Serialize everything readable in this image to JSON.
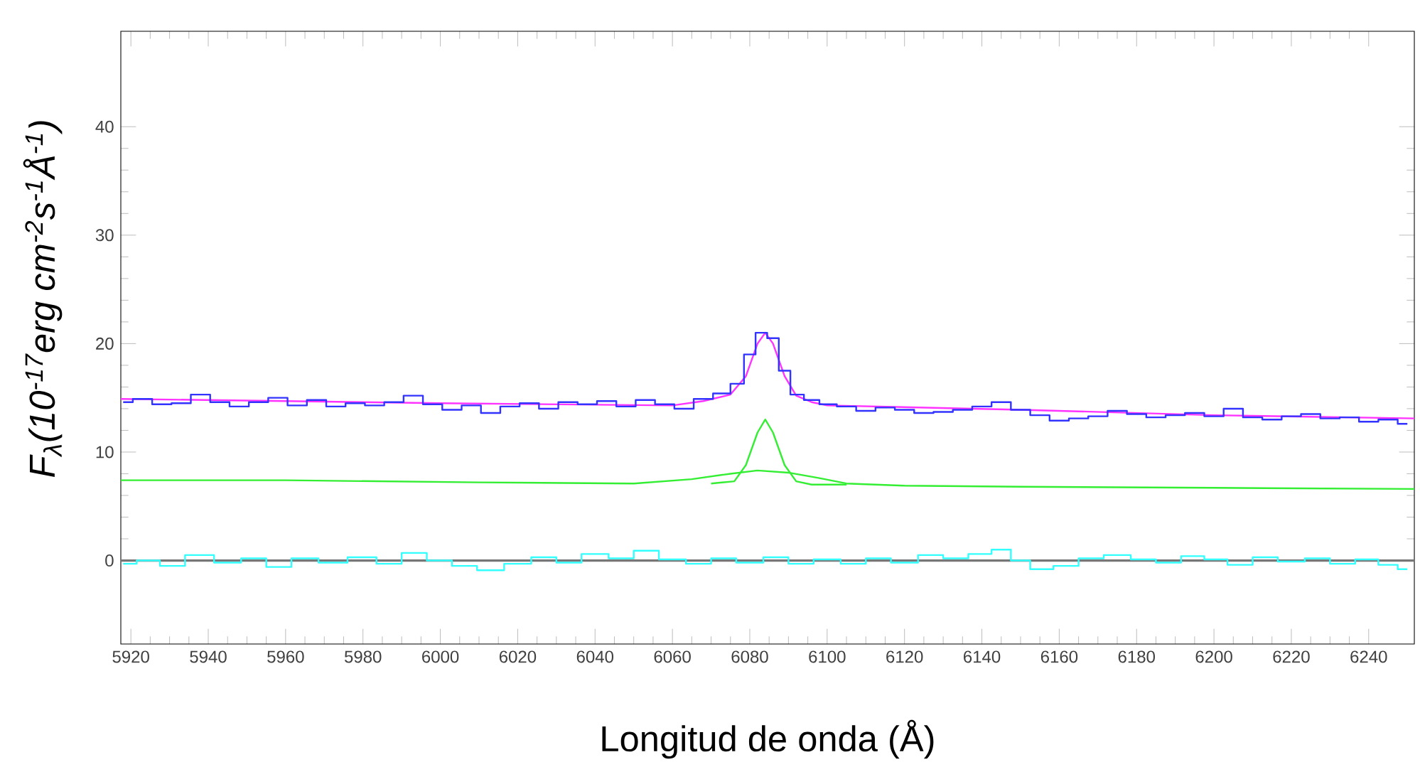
{
  "chart_data": {
    "type": "line",
    "xlabel": "Longitud de onda (Å)",
    "ylabel": "*F$_{λ}$(10$^{-17}$erg cm$^{-2}$s$^{-1}$Å$^{-1}$)*",
    "xlim": [
      5917.4,
      6251.8
    ],
    "ylim": [
      -7.7,
      48.8
    ],
    "xticks": [
      5920,
      5940,
      5960,
      5980,
      6000,
      6020,
      6040,
      6060,
      6080,
      6100,
      6120,
      6140,
      6160,
      6180,
      6200,
      6220,
      6240
    ],
    "yticks": [
      0,
      10,
      20,
      30,
      40
    ],
    "grid": false,
    "ref_lines": [
      {
        "axis": "y",
        "value": 0,
        "color": "#777777"
      }
    ],
    "series": [
      {
        "color": "#33ee33",
        "x": [
          5917.4,
          5960,
          6010,
          6050,
          6065,
          6075,
          6082,
          6090,
          6098,
          6105,
          6120,
          6150,
          6200,
          6251.8
        ],
        "values": [
          7.4,
          7.4,
          7.2,
          7.1,
          7.5,
          8.0,
          8.3,
          8.1,
          7.6,
          7.1,
          6.9,
          6.8,
          6.7,
          6.6
        ]
      },
      {
        "color": "#33ee33",
        "x": [
          6070,
          6076,
          6079,
          6082,
          6084,
          6086,
          6089,
          6092,
          6096,
          6105
        ],
        "values": [
          7.1,
          7.3,
          8.8,
          11.8,
          13.0,
          11.8,
          8.8,
          7.3,
          7.0,
          7.0
        ]
      },
      {
        "type": "step",
        "color": "#33ffff",
        "x": [
          5918,
          5925,
          5930,
          5938,
          5945,
          5952,
          5958,
          5965,
          5972,
          5980,
          5987,
          5993,
          6000,
          6006,
          6013,
          6020,
          6027,
          6033,
          6040,
          6047,
          6053,
          6060,
          6067,
          6073,
          6080,
          6087,
          6093,
          6100,
          6107,
          6113,
          6120,
          6127,
          6133,
          6140,
          6145,
          6150,
          6155,
          6162,
          6168,
          6175,
          6182,
          6188,
          6195,
          6200,
          6207,
          6213,
          6220,
          6227,
          6233,
          6240,
          6245,
          6250
        ],
        "values": [
          -0.3,
          0,
          -0.5,
          0.5,
          -0.2,
          0.2,
          -0.6,
          0.2,
          -0.2,
          0.3,
          -0.3,
          0.7,
          0,
          -0.5,
          -0.9,
          -0.3,
          0.3,
          -0.2,
          0.6,
          0.2,
          0.9,
          0.1,
          -0.3,
          0.2,
          -0.2,
          0.3,
          -0.3,
          0.1,
          -0.3,
          0.2,
          -0.2,
          0.5,
          0.2,
          0.6,
          1.0,
          0,
          -0.8,
          -0.5,
          0.2,
          0.5,
          0.1,
          -0.2,
          0.4,
          0.1,
          -0.4,
          0.3,
          -0.1,
          0.2,
          -0.3,
          0.1,
          -0.4,
          -0.8
        ]
      },
      {
        "type": "step",
        "color": "#3333ff",
        "x": [
          5918,
          5923,
          5928,
          5933,
          5938,
          5943,
          5948,
          5953,
          5958,
          5963,
          5968,
          5973,
          5978,
          5983,
          5988,
          5993,
          5998,
          6003,
          6008,
          6013,
          6018,
          6023,
          6028,
          6033,
          6038,
          6043,
          6048,
          6053,
          6058,
          6063,
          6068,
          6073,
          6077,
          6080,
          6083,
          6086,
          6089,
          6092,
          6096,
          6100,
          6105,
          6110,
          6115,
          6120,
          6125,
          6130,
          6135,
          6140,
          6145,
          6150,
          6155,
          6160,
          6165,
          6170,
          6175,
          6180,
          6185,
          6190,
          6195,
          6200,
          6205,
          6210,
          6215,
          6220,
          6225,
          6230,
          6235,
          6240,
          6245,
          6250
        ],
        "values": [
          14.6,
          14.9,
          14.4,
          14.5,
          15.3,
          14.6,
          14.2,
          14.6,
          15.0,
          14.3,
          14.8,
          14.2,
          14.5,
          14.3,
          14.6,
          15.2,
          14.4,
          13.9,
          14.3,
          13.6,
          14.2,
          14.5,
          14.0,
          14.6,
          14.4,
          14.7,
          14.2,
          14.8,
          14.4,
          14.0,
          14.9,
          15.4,
          16.3,
          19.0,
          21.0,
          20.5,
          17.5,
          15.3,
          14.8,
          14.4,
          14.2,
          13.8,
          14.1,
          13.9,
          13.6,
          13.7,
          13.9,
          14.2,
          14.6,
          13.9,
          13.4,
          12.9,
          13.1,
          13.3,
          13.8,
          13.5,
          13.2,
          13.4,
          13.6,
          13.3,
          14.0,
          13.2,
          13.0,
          13.3,
          13.5,
          13.1,
          13.2,
          12.8,
          13.0,
          12.6
        ]
      },
      {
        "color": "#ff33ff",
        "x": [
          5917.4,
          5960,
          6000,
          6060,
          6068,
          6075,
          6079,
          6082,
          6084,
          6086,
          6089,
          6092,
          6096,
          6100,
          6150,
          6200,
          6251.8
        ],
        "values": [
          14.9,
          14.7,
          14.5,
          14.3,
          14.7,
          15.3,
          17.0,
          20.0,
          21.0,
          20.0,
          17.0,
          15.2,
          14.6,
          14.3,
          13.9,
          13.4,
          13.1
        ]
      }
    ]
  }
}
